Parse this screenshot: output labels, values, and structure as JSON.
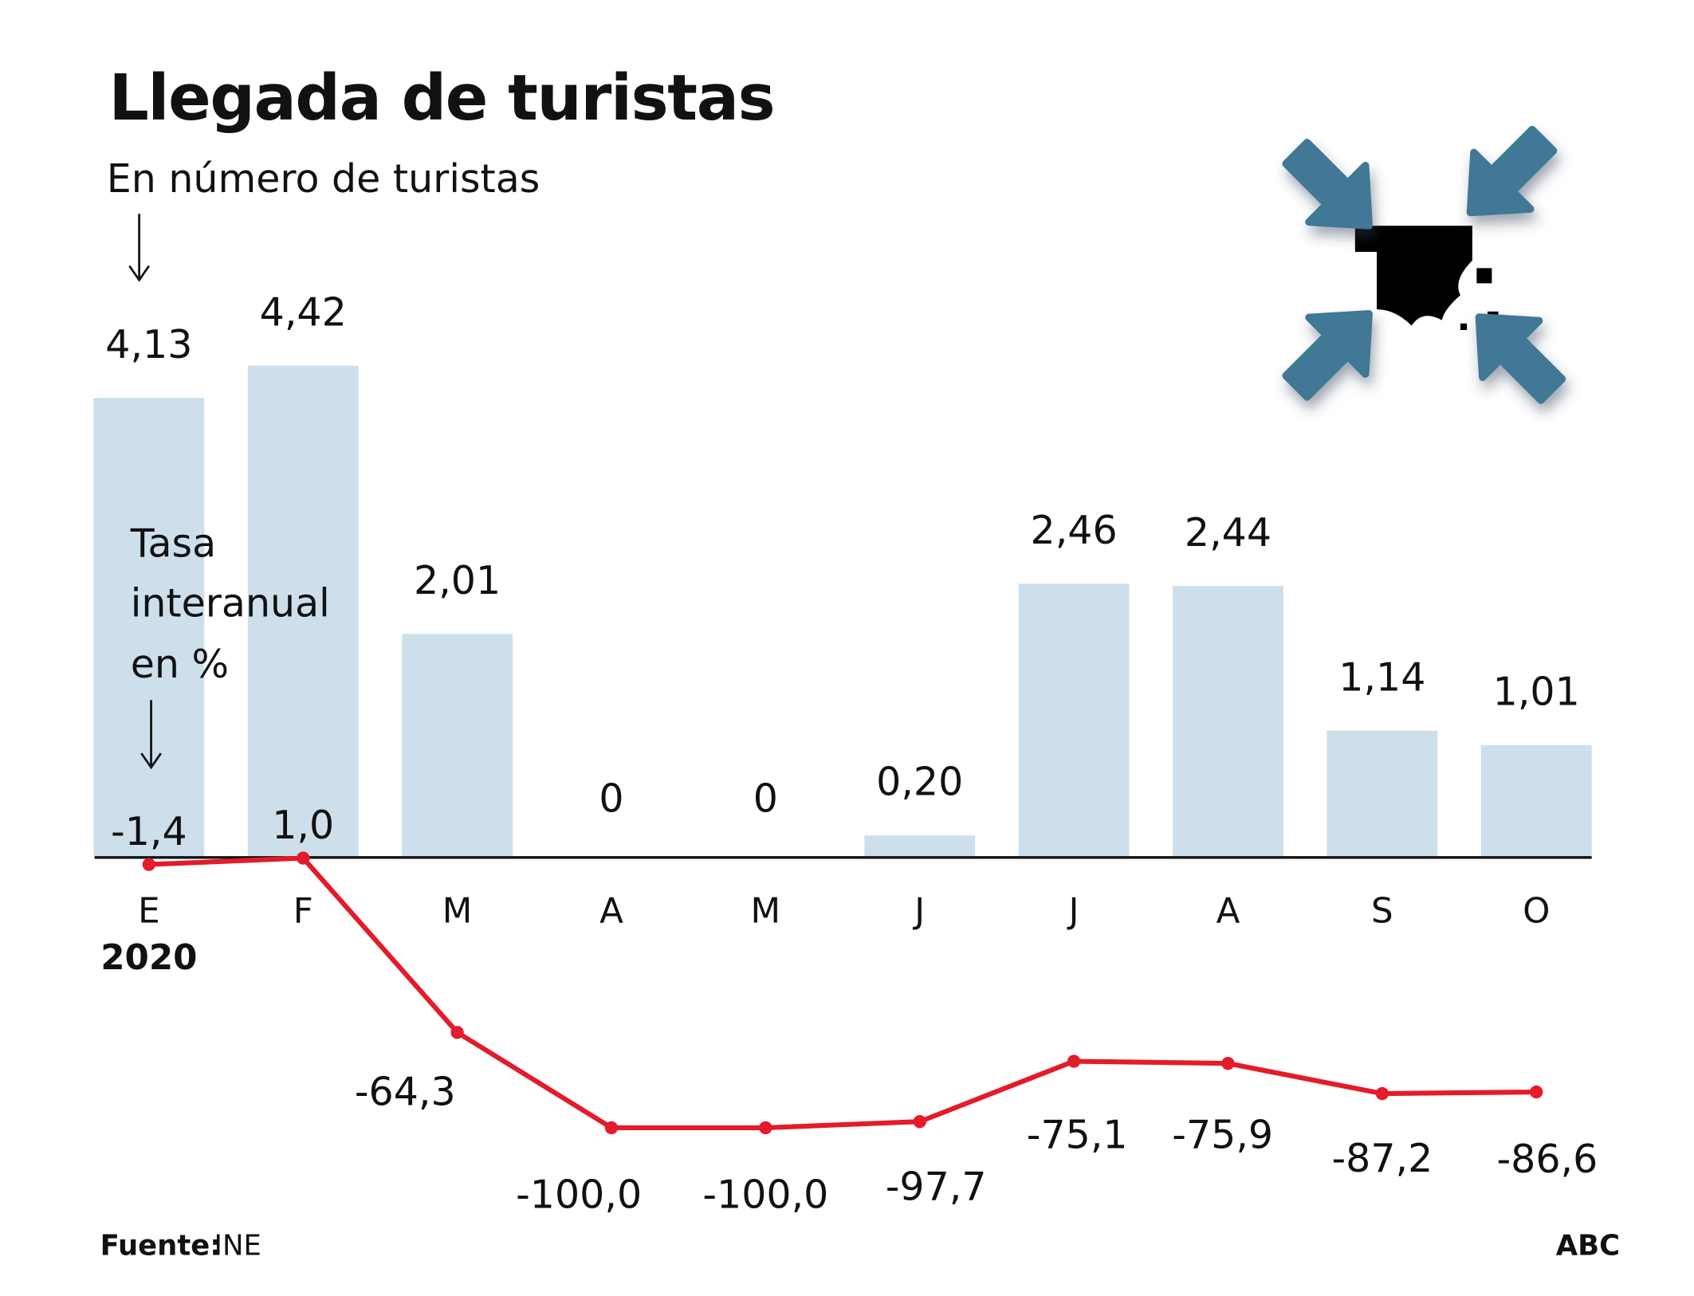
{
  "title": "Llegada de turistas",
  "subtitle": "En número de turistas",
  "rate_label": [
    "Tasa",
    "interanual",
    "en %"
  ],
  "year_label": "2020",
  "source_label": "Fuente:",
  "source_value": "INE",
  "brand": "ABC",
  "colors": {
    "bar": "#cddfeb",
    "line": "#e31b2a",
    "icon_arrows": "#3f7896",
    "axis": "#111111"
  },
  "icon": "spain-map-with-inward-arrows-icon",
  "chart_data": {
    "type": "bar+line",
    "categories": [
      "E",
      "F",
      "M",
      "A",
      "M",
      "J",
      "J",
      "A",
      "S",
      "O"
    ],
    "series": [
      {
        "type": "bar",
        "values": [
          4.13,
          4.42,
          2.01,
          0,
          0,
          0.2,
          2.46,
          2.44,
          1.14,
          1.01
        ],
        "labels": [
          "4,13",
          "4,42",
          "2,01",
          "0",
          "0",
          "0,20",
          "2,46",
          "2,44",
          "1,14",
          "1,01"
        ]
      },
      {
        "type": "line",
        "values": [
          -1.4,
          1.0,
          -64.3,
          -100.0,
          -100.0,
          -97.7,
          -75.1,
          -75.9,
          -87.2,
          -86.6
        ],
        "labels": [
          "-1,4",
          "1,0",
          "-64,3",
          "-100,0",
          "-100,0",
          "-97,7",
          "-75,1",
          "-75,9",
          "-87,2",
          "-86,6"
        ]
      }
    ],
    "grid": false,
    "legend": "none"
  }
}
